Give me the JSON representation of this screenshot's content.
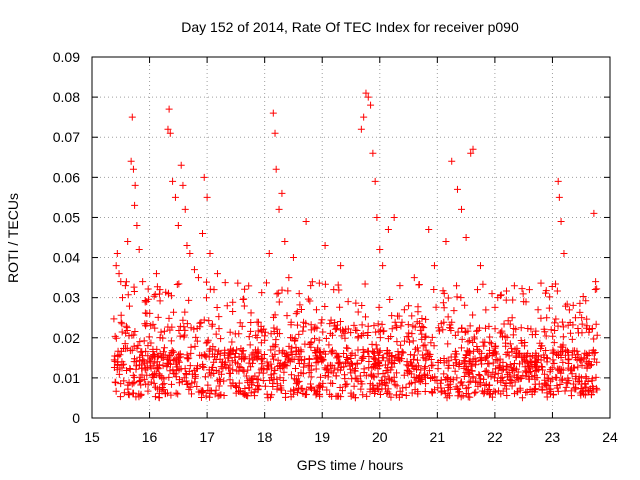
{
  "chart_data": {
    "type": "scatter",
    "title": "Day 152 of 2014, Rate Of TEC Index for receiver p090",
    "xlabel": "GPS time / hours",
    "ylabel": "ROTI / TECUs",
    "xlim": [
      15,
      24
    ],
    "ylim": [
      0,
      0.09
    ],
    "x_ticks": [
      "15",
      "16",
      "17",
      "18",
      "19",
      "20",
      "21",
      "22",
      "23",
      "24"
    ],
    "y_ticks": [
      "0",
      "0.01",
      "0.02",
      "0.03",
      "0.04",
      "0.05",
      "0.06",
      "0.07",
      "0.08",
      "0.09"
    ],
    "grid": true,
    "marker": "+",
    "color": "#ff0000",
    "series": [
      {
        "name": "ROTI",
        "x": [
          15.42,
          15.44,
          15.47,
          15.5,
          15.53,
          15.58,
          15.62,
          15.68,
          15.7,
          15.72,
          15.74,
          15.75,
          15.78,
          15.82,
          15.88,
          15.95,
          16.02,
          16.12,
          16.18,
          16.32,
          16.34,
          16.36,
          16.4,
          16.45,
          16.5,
          16.55,
          16.58,
          16.62,
          16.65,
          16.7,
          16.78,
          16.85,
          16.92,
          16.95,
          17.0,
          17.05,
          17.12,
          17.18,
          17.35,
          17.55,
          18.08,
          18.15,
          18.18,
          18.2,
          18.25,
          18.3,
          18.35,
          18.42,
          18.5,
          18.6,
          18.72,
          18.8,
          18.9,
          19.05,
          19.2,
          19.32,
          19.45,
          19.68,
          19.72,
          19.76,
          19.8,
          19.84,
          19.88,
          19.92,
          19.95,
          20.0,
          20.05,
          20.15,
          20.25,
          20.35,
          20.5,
          20.6,
          20.85,
          20.95,
          21.15,
          21.25,
          21.35,
          21.42,
          21.5,
          21.58,
          21.62,
          21.75,
          21.95,
          22.05,
          22.3,
          22.5,
          22.6,
          22.75,
          22.9,
          23.1,
          23.12,
          23.15,
          23.2,
          23.4,
          23.6,
          23.72,
          23.75
        ],
        "y": [
          0.038,
          0.041,
          0.036,
          0.034,
          0.03,
          0.033,
          0.044,
          0.064,
          0.075,
          0.062,
          0.053,
          0.058,
          0.048,
          0.042,
          0.034,
          0.029,
          0.023,
          0.036,
          0.032,
          0.072,
          0.077,
          0.071,
          0.059,
          0.055,
          0.048,
          0.063,
          0.058,
          0.052,
          0.043,
          0.041,
          0.037,
          0.035,
          0.046,
          0.06,
          0.055,
          0.041,
          0.032,
          0.036,
          0.028,
          0.021,
          0.041,
          0.076,
          0.071,
          0.062,
          0.052,
          0.056,
          0.044,
          0.035,
          0.04,
          0.031,
          0.049,
          0.033,
          0.027,
          0.043,
          0.032,
          0.038,
          0.029,
          0.072,
          0.075,
          0.081,
          0.08,
          0.078,
          0.066,
          0.059,
          0.05,
          0.042,
          0.038,
          0.047,
          0.05,
          0.033,
          0.028,
          0.035,
          0.047,
          0.038,
          0.044,
          0.064,
          0.057,
          0.052,
          0.045,
          0.066,
          0.067,
          0.038,
          0.031,
          0.03,
          0.025,
          0.029,
          0.032,
          0.027,
          0.025,
          0.059,
          0.055,
          0.049,
          0.041,
          0.025,
          0.023,
          0.051,
          0.034
        ]
      }
    ]
  }
}
